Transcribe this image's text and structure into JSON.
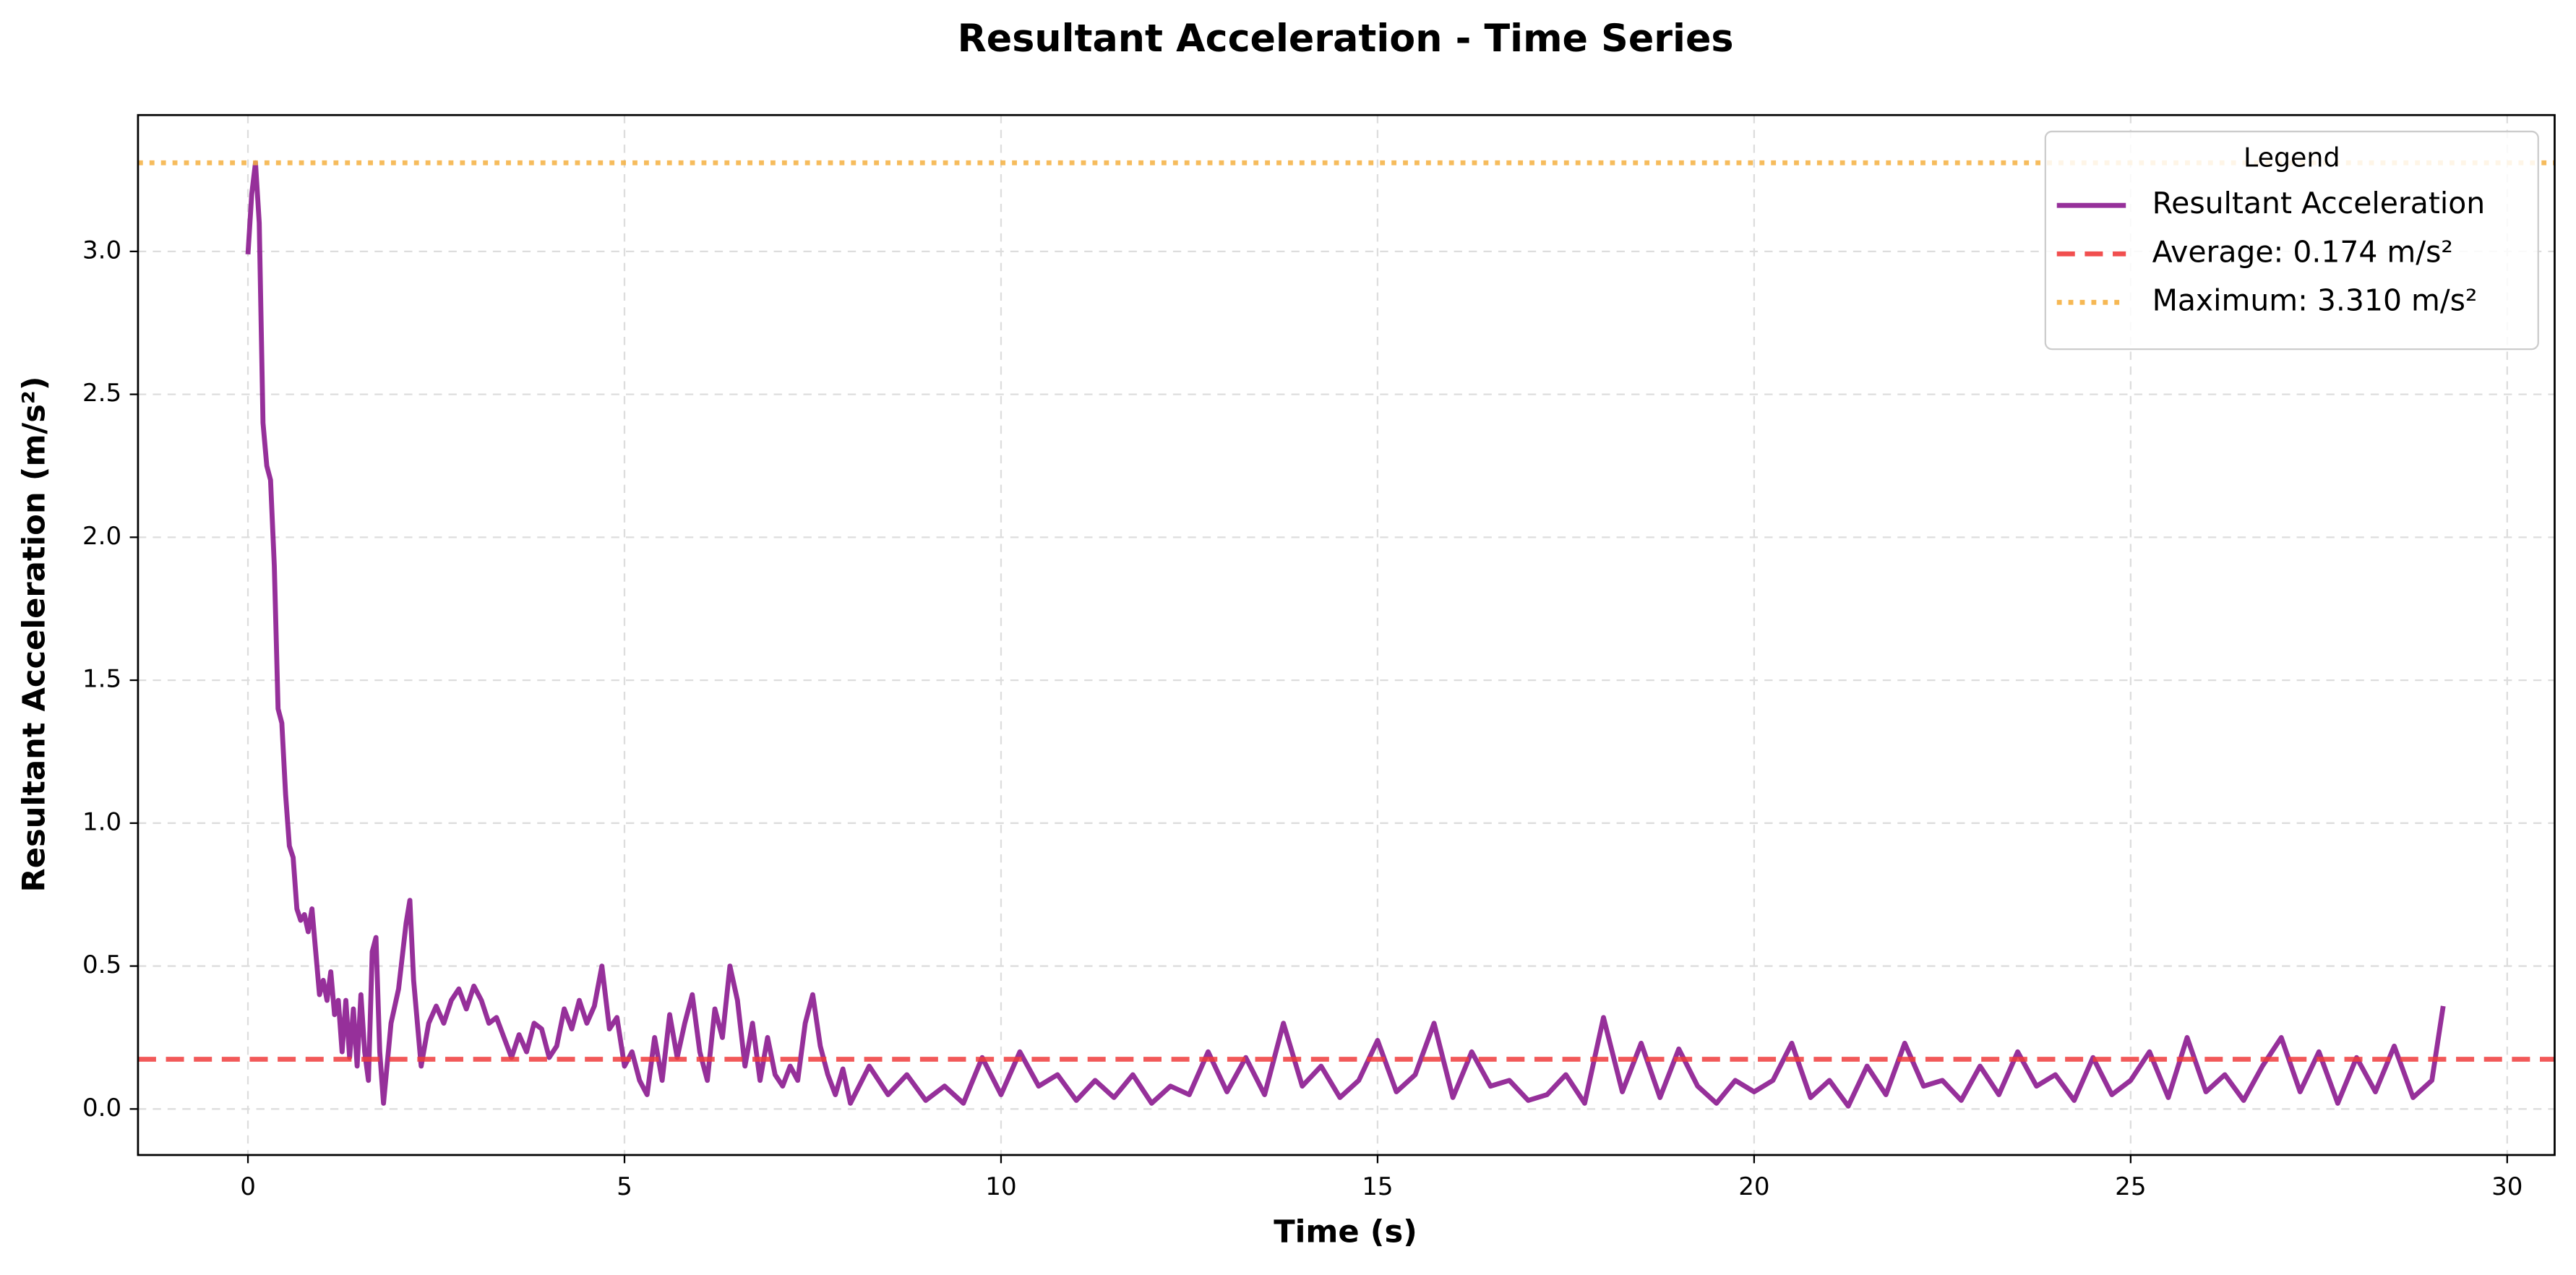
{
  "chart_data": {
    "type": "line",
    "title": "Resultant Acceleration - Time Series",
    "x_label": "Time (s)",
    "y_label": "Resultant Acceleration (m/s²)",
    "xlim": [
      -1.46,
      30.63
    ],
    "ylim": [
      -0.161,
      3.477
    ],
    "xticks": [
      0,
      5,
      10,
      15,
      20,
      25,
      30
    ],
    "yticks": [
      {
        "value": 0,
        "label": "0.0"
      },
      0.5,
      {
        "value": 1,
        "label": "1.0"
      },
      1.5,
      {
        "value": 2,
        "label": "2.0"
      },
      2.5,
      {
        "value": 3,
        "label": "3.0"
      }
    ],
    "grid": true,
    "legend_title": "Legend",
    "legend_position": "upper right",
    "series": [
      {
        "name": "Resultant Acceleration",
        "color": "#8b1a8f",
        "x": [
          0,
          0.05,
          0.1,
          0.15,
          0.2,
          0.25,
          0.3,
          0.35,
          0.4,
          0.45,
          0.5,
          0.55,
          0.6,
          0.65,
          0.7,
          0.75,
          0.8,
          0.85,
          0.9,
          0.95,
          1.0,
          1.05,
          1.1,
          1.15,
          1.2,
          1.25,
          1.3,
          1.35,
          1.4,
          1.45,
          1.5,
          1.55,
          1.6,
          1.65,
          1.7,
          1.75,
          1.8,
          1.9,
          2.0,
          2.1,
          2.15,
          2.2,
          2.3,
          2.4,
          2.5,
          2.6,
          2.7,
          2.8,
          2.9,
          3.0,
          3.1,
          3.2,
          3.3,
          3.4,
          3.5,
          3.6,
          3.7,
          3.8,
          3.9,
          4.0,
          4.1,
          4.2,
          4.3,
          4.4,
          4.5,
          4.6,
          4.7,
          4.8,
          4.9,
          5.0,
          5.1,
          5.2,
          5.3,
          5.4,
          5.5,
          5.6,
          5.7,
          5.8,
          5.9,
          6.0,
          6.1,
          6.2,
          6.3,
          6.4,
          6.5,
          6.6,
          6.7,
          6.8,
          6.9,
          7.0,
          7.1,
          7.2,
          7.3,
          7.4,
          7.5,
          7.6,
          7.7,
          7.8,
          7.9,
          8.0,
          8.25,
          8.5,
          8.75,
          9.0,
          9.25,
          9.5,
          9.75,
          10.0,
          10.25,
          10.5,
          10.75,
          11.0,
          11.25,
          11.5,
          11.75,
          12.0,
          12.25,
          12.5,
          12.75,
          13.0,
          13.25,
          13.5,
          13.75,
          14.0,
          14.25,
          14.5,
          14.75,
          15.0,
          15.25,
          15.5,
          15.75,
          16.0,
          16.25,
          16.5,
          16.75,
          17.0,
          17.25,
          17.5,
          17.75,
          18.0,
          18.25,
          18.5,
          18.75,
          19.0,
          19.25,
          19.5,
          19.75,
          20.0,
          20.25,
          20.5,
          20.75,
          21.0,
          21.25,
          21.5,
          21.75,
          22.0,
          22.25,
          22.5,
          22.75,
          23.0,
          23.25,
          23.5,
          23.75,
          24.0,
          24.25,
          24.5,
          24.75,
          25.0,
          25.25,
          25.5,
          25.75,
          26.0,
          26.25,
          26.5,
          26.75,
          27.0,
          27.25,
          27.5,
          27.75,
          28.0,
          28.25,
          28.5,
          28.75,
          29.0,
          29.15
        ],
        "values": [
          2.99,
          3.2,
          3.31,
          3.1,
          2.4,
          2.25,
          2.2,
          1.9,
          1.4,
          1.35,
          1.1,
          0.92,
          0.88,
          0.7,
          0.66,
          0.68,
          0.62,
          0.7,
          0.55,
          0.4,
          0.45,
          0.38,
          0.48,
          0.33,
          0.38,
          0.2,
          0.38,
          0.18,
          0.35,
          0.15,
          0.4,
          0.2,
          0.1,
          0.55,
          0.6,
          0.2,
          0.02,
          0.3,
          0.42,
          0.65,
          0.73,
          0.45,
          0.15,
          0.3,
          0.36,
          0.3,
          0.38,
          0.42,
          0.35,
          0.43,
          0.38,
          0.3,
          0.32,
          0.25,
          0.18,
          0.26,
          0.2,
          0.3,
          0.28,
          0.18,
          0.22,
          0.35,
          0.28,
          0.38,
          0.3,
          0.36,
          0.5,
          0.28,
          0.32,
          0.15,
          0.2,
          0.1,
          0.05,
          0.25,
          0.1,
          0.33,
          0.18,
          0.3,
          0.4,
          0.2,
          0.1,
          0.35,
          0.25,
          0.5,
          0.38,
          0.15,
          0.3,
          0.1,
          0.25,
          0.12,
          0.08,
          0.15,
          0.1,
          0.3,
          0.4,
          0.22,
          0.12,
          0.05,
          0.14,
          0.02,
          0.15,
          0.05,
          0.12,
          0.03,
          0.08,
          0.02,
          0.18,
          0.05,
          0.2,
          0.08,
          0.12,
          0.03,
          0.1,
          0.04,
          0.12,
          0.02,
          0.08,
          0.05,
          0.2,
          0.06,
          0.18,
          0.05,
          0.3,
          0.08,
          0.15,
          0.04,
          0.1,
          0.24,
          0.06,
          0.12,
          0.3,
          0.04,
          0.2,
          0.08,
          0.1,
          0.03,
          0.05,
          0.12,
          0.02,
          0.32,
          0.06,
          0.23,
          0.04,
          0.21,
          0.08,
          0.02,
          0.1,
          0.06,
          0.1,
          0.23,
          0.04,
          0.1,
          0.01,
          0.15,
          0.05,
          0.23,
          0.08,
          0.1,
          0.03,
          0.15,
          0.05,
          0.2,
          0.08,
          0.12,
          0.03,
          0.18,
          0.05,
          0.1,
          0.2,
          0.04,
          0.25,
          0.06,
          0.12,
          0.03,
          0.15,
          0.25,
          0.06,
          0.2,
          0.02,
          0.18,
          0.06,
          0.22,
          0.04,
          0.1,
          0.36
        ]
      }
    ],
    "hlines": [
      {
        "name": "Average: 0.174 m/s²",
        "value": 0.174,
        "color": "#f03c3c",
        "style": "dashed"
      },
      {
        "name": "Maximum: 3.310 m/s²",
        "value": 3.31,
        "color": "#f5b041",
        "style": "dotted"
      }
    ]
  }
}
